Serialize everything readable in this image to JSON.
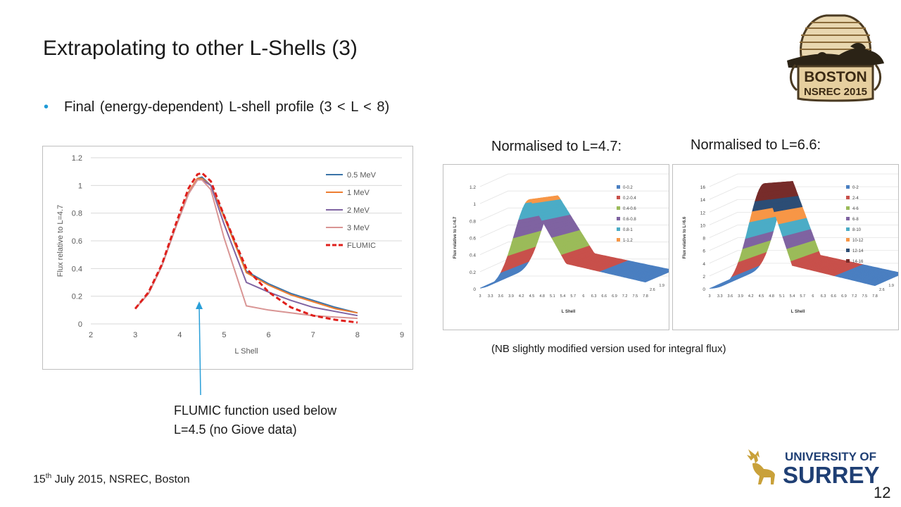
{
  "slide": {
    "title": "Extrapolating to other L-Shells (3)",
    "bullet": "Final (energy-dependent) L-shell profile  (3 < L < 8)",
    "caption_47": "Normalised to L=4.7:",
    "caption_66": "Normalised to L=6.6:",
    "nb_note": "(NB slightly modified version used for integral flux)",
    "flumic_note_line1": "FLUMIC function used below",
    "flumic_note_line2": "L=4.5 (no Giove data)",
    "footer_day": "15",
    "footer_sup": "th",
    "footer_rest": " July 2015, NSREC, Boston",
    "page_number": "12",
    "boston_logo": {
      "line1": "BOSTON",
      "line2": "NSREC 2015"
    },
    "surrey_logo": {
      "line1": "UNIVERSITY OF",
      "line2": "SURREY"
    },
    "colors": {
      "accent": "#1f9ad6",
      "annotation_arrow": "#2a9fd8",
      "surrey_gold": "#c9a13a",
      "surrey_blue": "#1f3f74"
    }
  },
  "chart_data": [
    {
      "type": "line",
      "title": "",
      "xlabel": "L Shell",
      "ylabel": "Flux relative to L=4.7",
      "xlim": [
        2,
        9
      ],
      "ylim": [
        0,
        1.2
      ],
      "xticks": [
        "2",
        "3",
        "4",
        "5",
        "6",
        "7",
        "8",
        "9"
      ],
      "yticks": [
        "0",
        "0.2",
        "0.4",
        "0.6",
        "0.8",
        "1",
        "1.2"
      ],
      "grid": true,
      "legend": "right",
      "series": [
        {
          "name": "0.5 MeV",
          "color": "#3a73a8",
          "dash": false,
          "x": [
            3,
            3.3,
            3.6,
            3.9,
            4.2,
            4.4,
            4.5,
            4.7,
            5.0,
            5.5,
            6.0,
            6.5,
            7.0,
            7.5,
            8.0
          ],
          "y": [
            0.11,
            0.22,
            0.42,
            0.69,
            0.95,
            1.05,
            1.06,
            1.0,
            0.78,
            0.38,
            0.29,
            0.22,
            0.17,
            0.12,
            0.08
          ]
        },
        {
          "name": "1 MeV",
          "color": "#ed7d31",
          "dash": false,
          "x": [
            3,
            3.3,
            3.6,
            3.9,
            4.2,
            4.4,
            4.5,
            4.7,
            5.0,
            5.5,
            6.0,
            6.5,
            7.0,
            7.5,
            8.0
          ],
          "y": [
            0.11,
            0.22,
            0.42,
            0.69,
            0.95,
            1.05,
            1.05,
            1.0,
            0.77,
            0.37,
            0.28,
            0.21,
            0.16,
            0.11,
            0.08
          ]
        },
        {
          "name": "2 MeV",
          "color": "#8064a2",
          "dash": false,
          "x": [
            3,
            3.3,
            3.6,
            3.9,
            4.2,
            4.4,
            4.5,
            4.7,
            5.0,
            5.5,
            6.0,
            6.5,
            7.0,
            7.5,
            8.0
          ],
          "y": [
            0.11,
            0.22,
            0.42,
            0.69,
            0.94,
            1.04,
            1.04,
            1.0,
            0.72,
            0.3,
            0.23,
            0.17,
            0.12,
            0.09,
            0.06
          ]
        },
        {
          "name": "3 MeV",
          "color": "#d99594",
          "dash": false,
          "x": [
            3,
            3.3,
            3.6,
            3.9,
            4.2,
            4.4,
            4.5,
            4.7,
            5.0,
            5.5,
            6.0,
            6.5,
            7.0,
            7.5,
            8.0
          ],
          "y": [
            0.11,
            0.22,
            0.42,
            0.69,
            0.94,
            1.04,
            1.04,
            0.97,
            0.62,
            0.13,
            0.1,
            0.08,
            0.06,
            0.05,
            0.04
          ]
        },
        {
          "name": "FLUMIC",
          "color": "#e0201c",
          "dash": true,
          "x": [
            3,
            3.3,
            3.6,
            3.9,
            4.2,
            4.4,
            4.5,
            4.7,
            5.0,
            5.5,
            6.0,
            6.5,
            7.0,
            7.5,
            8.0
          ],
          "y": [
            0.11,
            0.23,
            0.43,
            0.71,
            0.98,
            1.08,
            1.09,
            1.03,
            0.78,
            0.4,
            0.23,
            0.12,
            0.06,
            0.03,
            0.01
          ]
        }
      ]
    },
    {
      "type": "area",
      "title": "",
      "xlabel": "L Shell",
      "ylabel": "Flux relative to L=4.7",
      "zlabel": "E (MeV)",
      "x_ticks": [
        "3",
        "3.3",
        "3.6",
        "3.9",
        "4.2",
        "4.5",
        "4.8",
        "5.1",
        "5.4",
        "5.7",
        "6",
        "6.3",
        "6.6",
        "6.9",
        "7.2",
        "7.5",
        "7.8"
      ],
      "y_ticks": [
        "0",
        "0.2",
        "0.4",
        "0.6",
        "0.8",
        "1",
        "1.2"
      ],
      "z_ticks": [
        "0.5",
        "1.2",
        "1.9",
        "2.6"
      ],
      "legend": "right",
      "legend_entries": [
        "0-0.2",
        "0.2-0.4",
        "0.4-0.6",
        "0.6-0.8",
        "0.8-1",
        "1-1.2"
      ],
      "band_colors": [
        "#4a7fc1",
        "#c8504b",
        "#9bbb59",
        "#7f63a1",
        "#4bacc6",
        "#f79646"
      ]
    },
    {
      "type": "area",
      "title": "",
      "xlabel": "L Shell",
      "ylabel": "Flux relative to L=6.6",
      "zlabel": "E (MeV)",
      "x_ticks": [
        "3",
        "3.3",
        "3.6",
        "3.9",
        "4.2",
        "4.5",
        "4.8",
        "5.1",
        "5.4",
        "5.7",
        "6",
        "6.3",
        "6.6",
        "6.9",
        "7.2",
        "7.5",
        "7.8"
      ],
      "y_ticks": [
        "0",
        "2",
        "4",
        "6",
        "8",
        "10",
        "12",
        "14",
        "16"
      ],
      "z_ticks": [
        "0.5",
        "1.2",
        "1.9",
        "2.6"
      ],
      "legend": "right",
      "legend_entries": [
        "0-2",
        "2-4",
        "4-6",
        "6-8",
        "8-10",
        "10-12",
        "12-14",
        "14-16"
      ],
      "band_colors": [
        "#4a7fc1",
        "#c8504b",
        "#9bbb59",
        "#7f63a1",
        "#4bacc6",
        "#f79646",
        "#2c4d75",
        "#772c2a"
      ]
    }
  ]
}
